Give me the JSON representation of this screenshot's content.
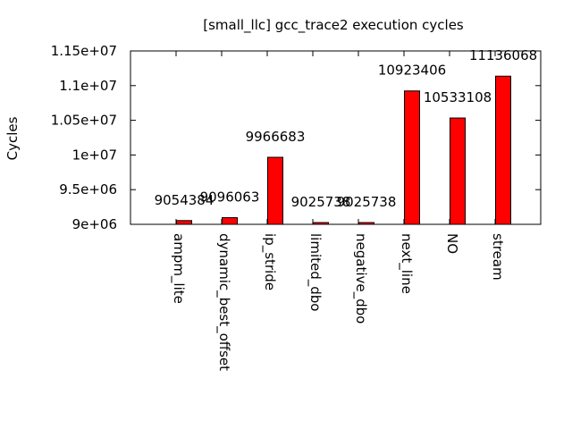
{
  "chart_data": {
    "type": "bar",
    "title": "[small_llc] gcc_trace2 execution cycles",
    "xlabel": "",
    "ylabel": "Cycles",
    "ylim": [
      9000000,
      11500000
    ],
    "yticks": [
      9000000,
      9500000,
      10000000,
      10500000,
      11000000,
      11500000
    ],
    "ytick_labels": [
      "9e+06",
      "9.5e+06",
      "1e+07",
      "1.05e+07",
      "1.1e+07",
      "1.15e+07"
    ],
    "categories": [
      "ampm_lite",
      "dynamic_best_offset",
      "ip_stride",
      "limited_dbo",
      "negative_dbo",
      "next_line",
      "NO",
      "stream"
    ],
    "values": [
      9054384,
      9096063,
      9966683,
      9025738,
      9025738,
      10923406,
      10533108,
      11136068
    ],
    "value_labels": [
      "9054384",
      "9096063",
      "9966683",
      "9025738",
      "9025738",
      "10923406",
      "10533108",
      "11136068"
    ],
    "bar_color": "#ff0000",
    "grid": false,
    "legend": "none"
  }
}
